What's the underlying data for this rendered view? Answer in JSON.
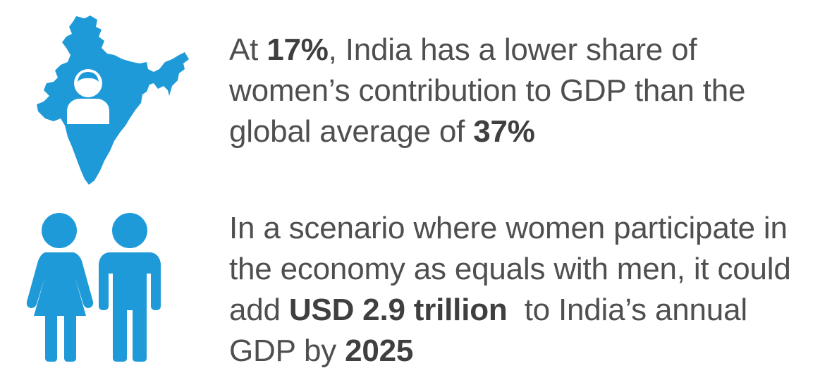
{
  "fact_india_share": {
    "p1": "At ",
    "b1": "17%",
    "p2": ", India has a lower share of women’s contribution to GDP than the global average of ",
    "b2": "37%"
  },
  "fact_scenario": {
    "p1": "In a scenario where women participate in the economy as equals with men, it could add ",
    "b1": "USD 2.9 trillion",
    "p2": "  to India’s annual GDP by ",
    "b2": "2025"
  },
  "icons": {
    "first": "india-map-with-woman-icon",
    "second": "woman-and-man-icon"
  },
  "colors": {
    "accent": "#1e9ad8",
    "text": "#4f4f4f"
  }
}
